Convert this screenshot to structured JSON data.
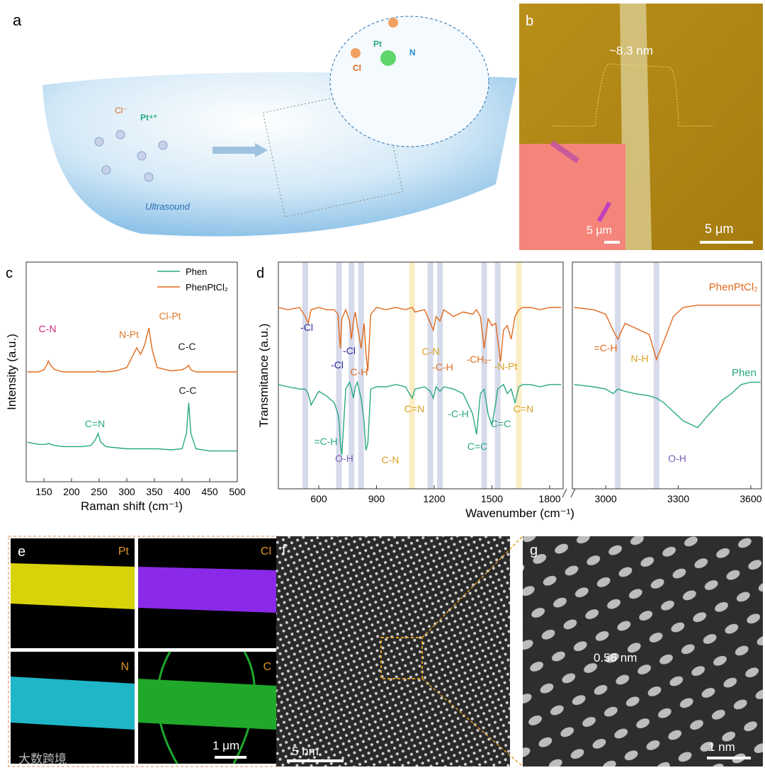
{
  "panels": {
    "a": {
      "label": "a",
      "cl_ion": "Cl⁻",
      "pt_ion": "Pt⁴⁺",
      "ultrasound": "Ultrasound",
      "pt": "Pt",
      "n": "N",
      "cl": "Cl"
    },
    "b": {
      "label": "b",
      "height": "~8.3 nm",
      "inset_scale": "5 μm",
      "scale": "5 μm"
    },
    "c": {
      "label": "c"
    },
    "d": {
      "label": "d"
    },
    "e": {
      "label": "e",
      "pt": "Pt",
      "cl": "Cl",
      "n": "N",
      "c": "C",
      "scale": "1 μm"
    },
    "f": {
      "label": "f",
      "scale": "5 nm"
    },
    "g": {
      "label": "g",
      "spacing": "0.56 nm",
      "scale": "1 nm"
    }
  },
  "watermark": "大数跨境",
  "chart_data": [
    {
      "type": "line",
      "xlabel": "Raman shift (cm⁻¹)",
      "ylabel": "Intensity (a.u.)",
      "x": [
        120,
        140,
        150,
        155,
        158,
        162,
        170,
        185,
        200,
        220,
        235,
        243,
        248,
        253,
        262,
        280,
        300,
        310,
        318,
        325,
        332,
        340,
        346,
        355,
        380,
        400,
        408,
        412,
        416,
        425,
        450,
        475,
        500
      ],
      "xlim": [
        118,
        500
      ],
      "xticks": [
        150,
        200,
        250,
        300,
        350,
        400,
        450,
        500
      ],
      "ylim": [
        0,
        100
      ],
      "legend": "top right",
      "series": [
        {
          "name": "Phen",
          "color": "#2aa882",
          "values": [
            18,
            17,
            17,
            17,
            17.5,
            17,
            16.5,
            16,
            16,
            16,
            16.5,
            19,
            22,
            18,
            16,
            15.5,
            15,
            15,
            15,
            15,
            15,
            15,
            15,
            15,
            14.5,
            15,
            22,
            36,
            22,
            15,
            14,
            14,
            14
          ]
        },
        {
          "name": "PhenPtCl₂",
          "color": "#e06a1e",
          "values": [
            50,
            50,
            51,
            53,
            55,
            53,
            51,
            50,
            50,
            50,
            50,
            50,
            50.5,
            50,
            50,
            50.5,
            52,
            57,
            61,
            58,
            62,
            70,
            60,
            52,
            50.5,
            51,
            52,
            53,
            51,
            50,
            50,
            50,
            50
          ]
        }
      ],
      "annotations": [
        {
          "text": "C-N",
          "color": "#c8287a"
        },
        {
          "text": "N-Pt",
          "color": "#e07a28"
        },
        {
          "text": "Cl-Pt",
          "color": "#e07a28"
        },
        {
          "text": "C-C",
          "color": "#222222"
        },
        {
          "text": "C=N",
          "color": "#2aa882"
        },
        {
          "text": "C-C",
          "color": "#222222"
        }
      ]
    },
    {
      "type": "line",
      "xlabel": "Wavenumber (cm⁻¹)",
      "ylabel": "Transmitance (a.u.)",
      "x": [
        390,
        440,
        500,
        530,
        545,
        560,
        600,
        640,
        680,
        700,
        705,
        712,
        720,
        740,
        760,
        770,
        780,
        790,
        800,
        820,
        835,
        845,
        855,
        870,
        900,
        950,
        1000,
        1050,
        1085,
        1100,
        1150,
        1180,
        1195,
        1210,
        1230,
        1250,
        1300,
        1350,
        1400,
        1420,
        1440,
        1460,
        1480,
        1500,
        1520,
        1530,
        1545,
        1560,
        1580,
        1600,
        1620,
        1640,
        1660,
        1700,
        1750,
        1800,
        1860,
        2870,
        2950,
        3000,
        3030,
        3050,
        3080,
        3120,
        3180,
        3210,
        3240,
        3280,
        3320,
        3380,
        3420,
        3480,
        3520,
        3560,
        3600,
        3640
      ],
      "x_segments": [
        {
          "xlim": [
            390,
            1870
          ],
          "xticks": [
            600,
            900,
            1200,
            1500,
            1800
          ]
        },
        {
          "xlim": [
            2862,
            3644
          ],
          "xticks": [
            3000,
            3300,
            3600
          ]
        }
      ],
      "ylim": [
        0,
        100
      ],
      "series": [
        {
          "name": "PhenPtCl₂",
          "color": "#e06a1e",
          "values": [
            80,
            79,
            80,
            76,
            73,
            79,
            80,
            79,
            79,
            77,
            70,
            62,
            75,
            79,
            74,
            66,
            74,
            78,
            72,
            62,
            73,
            60,
            52,
            77,
            80,
            79,
            80,
            79,
            80,
            78,
            79,
            73,
            70,
            76,
            74,
            79,
            76,
            78,
            77,
            79,
            76,
            62,
            75,
            72,
            73,
            66,
            56,
            70,
            72,
            66,
            76,
            79,
            80,
            80,
            79,
            80,
            80,
            80,
            79,
            77,
            70,
            66,
            73,
            71,
            68,
            57,
            65,
            76,
            80,
            81,
            81,
            81,
            81,
            81,
            81,
            81
          ]
        },
        {
          "name": "Phen",
          "color": "#2aa882",
          "values": [
            46,
            45,
            44,
            44,
            42,
            37,
            43,
            41,
            38,
            33,
            30,
            20,
            15,
            44,
            47,
            44,
            40,
            45,
            47,
            40,
            30,
            17,
            20,
            44,
            45,
            45,
            46,
            45,
            40,
            44,
            45,
            43,
            40,
            45,
            43,
            45,
            44,
            42,
            33,
            24,
            42,
            44,
            33,
            28,
            38,
            44,
            45,
            46,
            42,
            44,
            38,
            45,
            46,
            46,
            45,
            46,
            46,
            46,
            45,
            44,
            42,
            44,
            43,
            42,
            41,
            40,
            38,
            34,
            30,
            27,
            32,
            39,
            42,
            46,
            47,
            47
          ]
        }
      ],
      "bands": [
        {
          "value": 530,
          "color": "#d6daea"
        },
        {
          "value": 705,
          "color": "#d6daea"
        },
        {
          "value": 770,
          "color": "#d6daea"
        },
        {
          "value": 820,
          "color": "#d6daea"
        },
        {
          "value": 1085,
          "color": "#fbedc4"
        },
        {
          "value": 1180,
          "color": "#d6daea"
        },
        {
          "value": 1230,
          "color": "#d6daea"
        },
        {
          "value": 1460,
          "color": "#d6daea"
        },
        {
          "value": 1530,
          "color": "#d6daea"
        },
        {
          "value": 1640,
          "color": "#fbedc4"
        },
        {
          "value": 3050,
          "color": "#d6daea"
        },
        {
          "value": 3210,
          "color": "#d6daea"
        }
      ],
      "annotations": [
        {
          "text": "-Cl",
          "color": "#2b2b9a"
        },
        {
          "text": "-Cl",
          "color": "#2b2b9a"
        },
        {
          "text": "-Cl",
          "color": "#2b2b9a"
        },
        {
          "text": "C-H",
          "color": "#e06a1e"
        },
        {
          "text": "C-N",
          "color": "#d9a020"
        },
        {
          "text": "-C-H",
          "color": "#e06a1e"
        },
        {
          "text": "-CH₂-",
          "color": "#e06a1e"
        },
        {
          "text": "-N-Pt",
          "color": "#d9a020"
        },
        {
          "text": "=C-H",
          "color": "#e06a1e"
        },
        {
          "text": "N-H",
          "color": "#d9a020"
        },
        {
          "text": "=C-H",
          "color": "#2aa882"
        },
        {
          "text": "O-H",
          "color": "#7a60b8"
        },
        {
          "text": "C-N",
          "color": "#d9a020"
        },
        {
          "text": "C=N",
          "color": "#d9a020"
        },
        {
          "text": "-C-H",
          "color": "#2aa882"
        },
        {
          "text": "C=C",
          "color": "#2aa882"
        },
        {
          "text": "C=C",
          "color": "#2aa882"
        },
        {
          "text": "C=N",
          "color": "#d9a020"
        },
        {
          "text": "O-H",
          "color": "#7a60b8"
        }
      ]
    }
  ]
}
